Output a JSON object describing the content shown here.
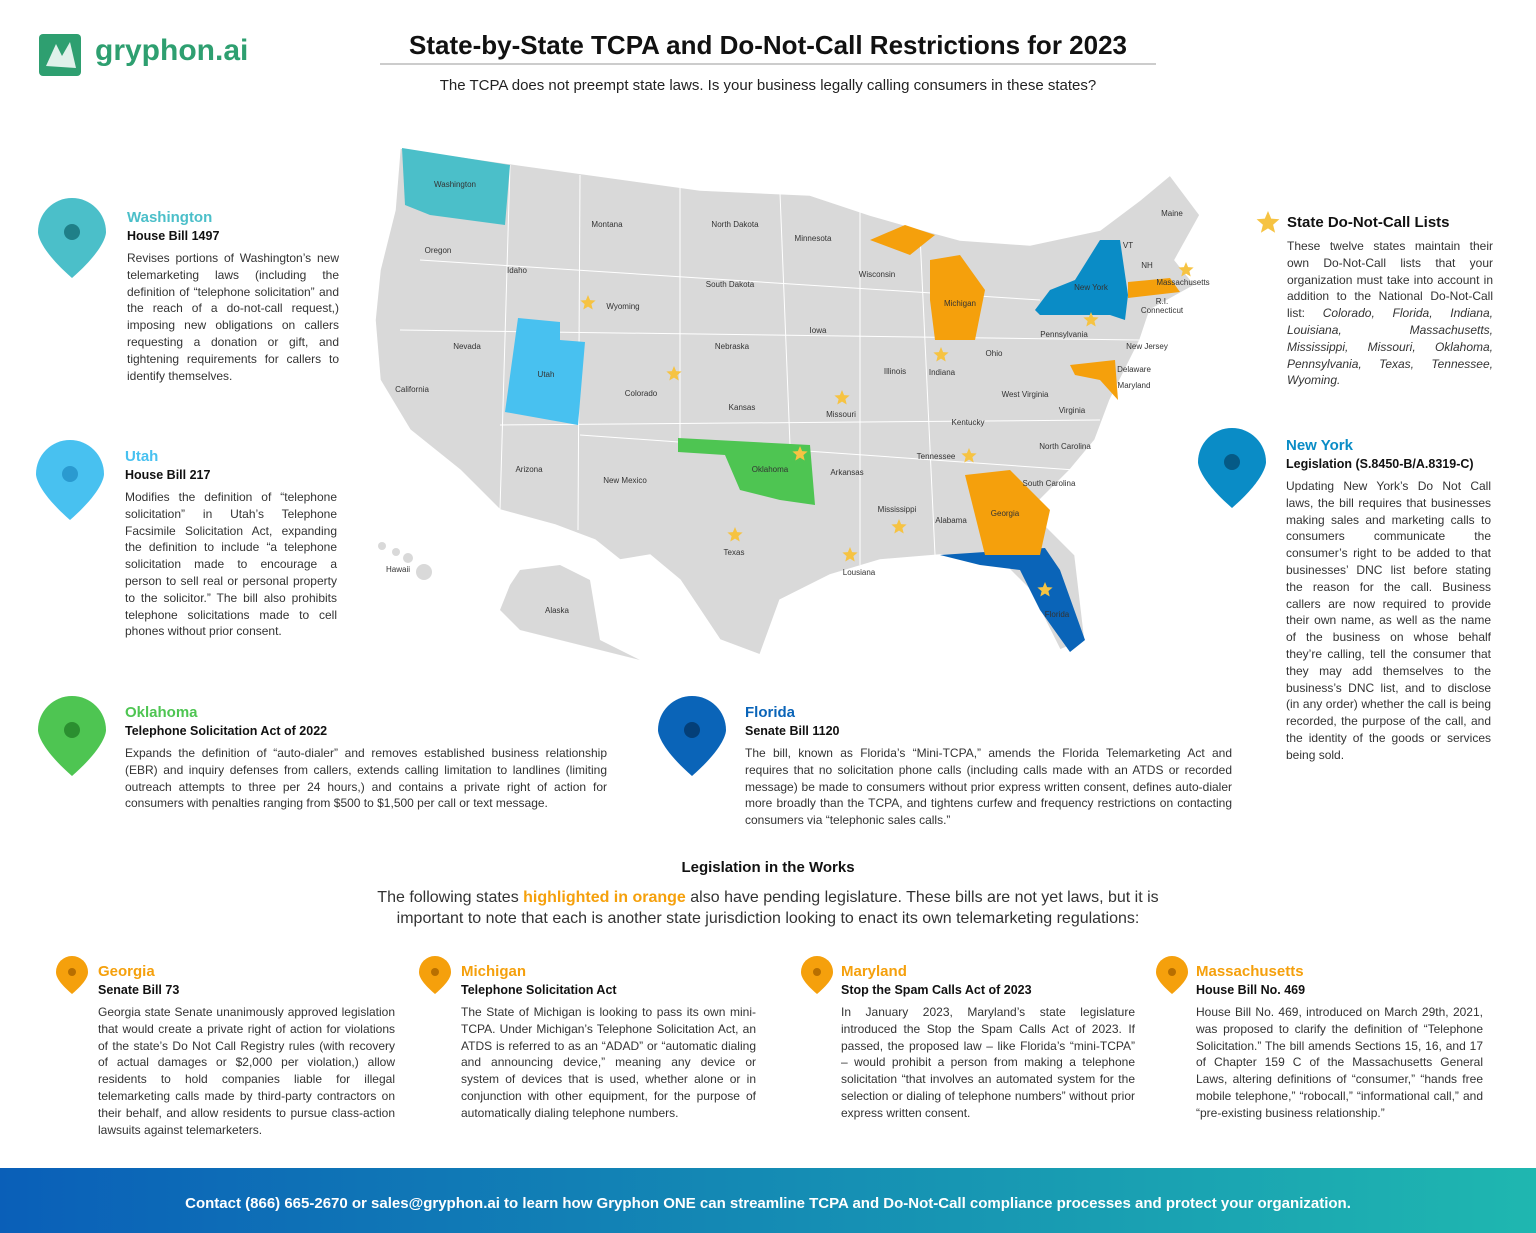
{
  "header": {
    "logo": "gryphon.ai",
    "title": "State-by-State TCPA and Do-Not-Call Restrictions for 2023",
    "subtitle": "The TCPA does not preempt state laws. Is your business legally calling consumers in these states?"
  },
  "map": {
    "states": [
      "Washington",
      "Oregon",
      "California",
      "Nevada",
      "Idaho",
      "Montana",
      "Wyoming",
      "Utah",
      "Arizona",
      "Colorado",
      "New Mexico",
      "North Dakota",
      "South Dakota",
      "Nebraska",
      "Kansas",
      "Oklahoma",
      "Texas",
      "Minnesota",
      "Iowa",
      "Missouri",
      "Arkansas",
      "Lousiana",
      "Wisconsin",
      "Illinois",
      "Michigan",
      "Indiana",
      "Ohio",
      "Kentucky",
      "Tennessee",
      "Mississippi",
      "Alabama",
      "Georgia",
      "Florida",
      "South Carolina",
      "North Carolina",
      "Virginia",
      "West Virginia",
      "Pennsylvania",
      "New York",
      "Maryland",
      "Delaware",
      "New Jersey",
      "R.I.",
      "Connecticut",
      "Massachusetts",
      "VT",
      "NH",
      "Maine",
      "Hawaii",
      "Alaska"
    ]
  },
  "highlights": [
    {
      "state": "Washington",
      "bill": "House Bill 1497",
      "text": "Revises portions of Washington’s new telemarketing laws (including the definition of “telephone solicitation” and the reach of a do-not-call request,) imposing new obligations on callers requesting a donation or gift, and tightening requirements for callers to identify themselves."
    },
    {
      "state": "Utah",
      "bill": "House Bill 217",
      "text": "Modifies the definition of “telephone solicitation” in Utah’s Telephone Facsimile Solicitation Act, expanding the definition to include “a telephone solicitation made to encourage a person to sell real or personal property to the solicitor.” The bill also prohibits telephone solicitations made to cell phones without prior consent."
    },
    {
      "state": "Oklahoma",
      "bill": "Telephone Solicitation Act of 2022",
      "text": "Expands the definition of “auto-dialer” and removes established business relationship (EBR) and inquiry defenses from callers, extends calling limitation to landlines (limiting outreach attempts to three per 24 hours,) and contains a private right of action for consumers with penalties ranging from $500 to $1,500 per call or text message."
    },
    {
      "state": "Florida",
      "bill": "Senate Bill 1120",
      "text": "The bill, known as Florida’s “Mini-TCPA,” amends the Florida Telemarketing Act and requires that no solicitation phone calls (including calls made with an ATDS or recorded message) be made to consumers without prior express written consent, defines auto-dialer more broadly than the TCPA, and tightens curfew and frequency restrictions on contacting consumers via “telephonic sales calls.”"
    },
    {
      "state": "New York",
      "bill": "Legislation (S.8450-B/A.8319-C)",
      "text": "Updating New York’s Do Not Call laws, the bill requires that businesses making sales and marketing calls to consumers communicate the consumer’s right to be added to that businesses’ DNC list before stating the reason for the call. Business callers are now required to provide their own name, as well as the name of the business on whose behalf they’re calling, tell the consumer that they may add themselves to the business’s DNC list, and to disclose (in any order) whether the call is being recorded, the purpose of the call, and the identity of the goods or services being sold."
    }
  ],
  "dnc_lists": {
    "title": "State Do-Not-Call Lists",
    "text": "These twelve states maintain their own Do-Not-Call lists that your organization must take into account in addition to the National Do-Not-Call list:",
    "states": "Colorado, Florida, Indiana, Louisiana, Massachusetts, Mississippi, Missouri, Oklahoma, Pennsylvania, Texas, Tennessee, Wyoming."
  },
  "pending": {
    "title": "Legislation in the Works",
    "intro": [
      "The following states",
      "highlighted in orange",
      "also have pending legislature. These bills are not yet laws, but it is important to note that each is another state jurisdiction looking to enact its own telemarketing regulations:"
    ],
    "items": [
      {
        "state": "Georgia",
        "bill": "Senate Bill 73",
        "text": "Georgia state Senate unanimously approved legislation that would create a private right of action for violations of the state’s Do Not Call Registry rules (with recovery of actual damages or $2,000 per violation,) allow residents to hold companies liable for illegal telemarketing calls made by third-party contractors on their behalf, and allow residents to pursue class-action lawsuits against telemarketers."
      },
      {
        "state": "Michigan",
        "bill": "Telephone Solicitation Act",
        "text": "The State of Michigan is looking to pass its own mini-TCPA. Under Michigan’s Telephone Solicitation Act, an ATDS is referred to as an “ADAD” or “automatic dialing and announcing device,” meaning any device or system of devices that is used, whether alone or in conjunction with other equipment, for the purpose of automatically dialing telephone numbers."
      },
      {
        "state": "Maryland",
        "bill": "Stop the Spam Calls Act of 2023",
        "text": "In January 2023, Maryland’s state legislature introduced the Stop the Spam Calls Act of 2023. If passed, the proposed law – like Florida’s “mini-TCPA” – would prohibit a person from making a telephone solicitation “that involves an automated system for the selection or dialing of telephone numbers” without prior express written consent."
      },
      {
        "state": "Massachusetts",
        "bill": "House Bill No. 469",
        "text": "House Bill No. 469, introduced on March 29th, 2021, was proposed to clarify the definition of “Telephone Solicitation.” The bill amends Sections 15, 16, and 17 of Chapter 159 C of the Massachusetts General Laws, altering definitions of “consumer,” “hands free mobile telephone,” “robocall,” “informational call,” and “pre-existing business relationship.”"
      }
    ]
  },
  "footer": {
    "contact": "Contact (866) 665-2670 or sales@gryphon.ai to learn how Gryphon ONE can streamline TCPA and Do-Not-Call compliance processes and protect your organization."
  }
}
